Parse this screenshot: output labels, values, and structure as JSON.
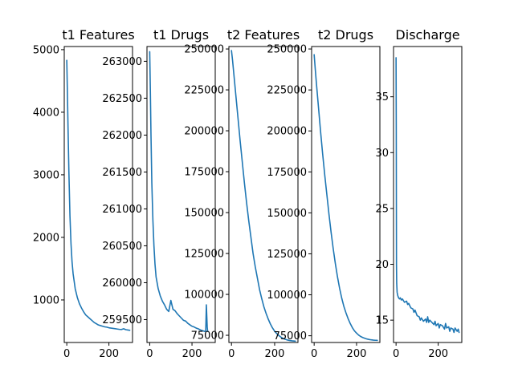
{
  "colors": {
    "series": "#1f77b4",
    "axis": "#000000",
    "background": "#ffffff"
  },
  "chart_data": [
    {
      "type": "line",
      "title": "t1 Features",
      "xlim": [
        -12,
        312
      ],
      "ylim": [
        320,
        5050
      ],
      "xticks": [
        0,
        200
      ],
      "yticks": [
        1000,
        2000,
        3000,
        4000,
        5000
      ],
      "grid": false,
      "series": [
        {
          "x": [
            0,
            3,
            6,
            10,
            15,
            20,
            25,
            30,
            40,
            50,
            60,
            70,
            80,
            90,
            100,
            110,
            120,
            130,
            140,
            150,
            160,
            170,
            180,
            190,
            200,
            210,
            220,
            230,
            240,
            250,
            260,
            270,
            280,
            290,
            299
          ],
          "y": [
            4830,
            4300,
            3750,
            3050,
            2350,
            1900,
            1610,
            1420,
            1180,
            1040,
            940,
            870,
            810,
            760,
            730,
            700,
            670,
            640,
            620,
            600,
            590,
            580,
            570,
            565,
            555,
            550,
            545,
            540,
            535,
            530,
            528,
            540,
            525,
            520,
            515
          ]
        }
      ]
    },
    {
      "type": "line",
      "title": "t1 Drugs",
      "xlim": [
        -13,
        310
      ],
      "ylim": [
        259190,
        263200
      ],
      "xticks": [
        0,
        200
      ],
      "yticks": [
        259500,
        260000,
        260500,
        261000,
        261500,
        262000,
        262500,
        263000
      ],
      "grid": false,
      "series": [
        {
          "x": [
            0,
            3,
            6,
            10,
            15,
            20,
            25,
            30,
            40,
            50,
            60,
            70,
            80,
            90,
            100,
            105,
            110,
            120,
            130,
            140,
            150,
            160,
            170,
            180,
            190,
            200,
            210,
            220,
            230,
            240,
            250,
            260,
            265,
            268,
            270,
            272,
            274
          ],
          "y": [
            263130,
            262600,
            262000,
            261350,
            260850,
            260500,
            260250,
            260080,
            259920,
            259820,
            259750,
            259700,
            259640,
            259610,
            259760,
            259700,
            259640,
            259620,
            259580,
            259550,
            259520,
            259490,
            259480,
            259450,
            259430,
            259410,
            259400,
            259385,
            259375,
            259360,
            259350,
            259340,
            259345,
            259700,
            259550,
            259400,
            259340
          ]
        }
      ]
    },
    {
      "type": "line",
      "title": "t2 Features",
      "xlim": [
        -12,
        308
      ],
      "ylim": [
        70600,
        251500
      ],
      "xticks": [
        0,
        200
      ],
      "yticks": [
        75000,
        100000,
        125000,
        150000,
        175000,
        200000,
        225000,
        250000
      ],
      "grid": false,
      "series": [
        {
          "x": [
            0,
            5,
            10,
            20,
            30,
            40,
            50,
            60,
            70,
            80,
            90,
            100,
            110,
            120,
            130,
            140,
            150,
            160,
            170,
            180,
            190,
            200,
            210,
            220,
            230,
            240,
            250,
            260,
            270,
            280,
            290,
            296
          ],
          "y": [
            249000,
            243000,
            236000,
            222000,
            208000,
            194000,
            181000,
            168000,
            156000,
            145000,
            135000,
            125000,
            117000,
            110000,
            103000,
            97500,
            92500,
            88500,
            85000,
            82000,
            79500,
            77500,
            76000,
            74800,
            73800,
            73000,
            72500,
            72100,
            71800,
            71600,
            71500,
            71450
          ]
        }
      ]
    },
    {
      "type": "line",
      "title": "t2 Drugs",
      "xlim": [
        -12,
        310
      ],
      "ylim": [
        70900,
        251500
      ],
      "xticks": [
        0,
        200
      ],
      "yticks": [
        75000,
        100000,
        125000,
        150000,
        175000,
        200000,
        225000,
        250000
      ],
      "grid": false,
      "series": [
        {
          "x": [
            0,
            5,
            10,
            20,
            30,
            40,
            50,
            60,
            70,
            80,
            90,
            100,
            110,
            120,
            130,
            140,
            150,
            160,
            170,
            180,
            190,
            200,
            210,
            220,
            230,
            240,
            250,
            260,
            270,
            280,
            290,
            298
          ],
          "y": [
            246500,
            238000,
            230000,
            215000,
            200000,
            186000,
            173000,
            161000,
            149000,
            138000,
            128000,
            119000,
            111000,
            104000,
            98000,
            93000,
            89000,
            85500,
            82500,
            80000,
            78000,
            76600,
            75400,
            74500,
            73900,
            73400,
            73000,
            72700,
            72500,
            72350,
            72250,
            72200
          ]
        }
      ]
    },
    {
      "type": "line",
      "title": "Discharge",
      "xlim": [
        -12,
        312
      ],
      "ylim": [
        13.0,
        39.5
      ],
      "xticks": [
        0,
        200
      ],
      "yticks": [
        15,
        20,
        25,
        30,
        35
      ],
      "grid": false,
      "series": [
        {
          "x": [
            0,
            1,
            2,
            3,
            5,
            8,
            12,
            16,
            20,
            25,
            30,
            40,
            50,
            55,
            60,
            70,
            80,
            85,
            90,
            100,
            110,
            115,
            120,
            130,
            140,
            145,
            150,
            155,
            160,
            170,
            180,
            185,
            190,
            200,
            205,
            210,
            220,
            230,
            235,
            240,
            250,
            255,
            260,
            270,
            275,
            280,
            290,
            295,
            299
          ],
          "y": [
            38.5,
            32.0,
            20.0,
            18.3,
            17.5,
            17.2,
            17.0,
            16.9,
            17.0,
            16.8,
            16.9,
            16.6,
            16.7,
            16.4,
            16.5,
            16.1,
            16.0,
            15.7,
            15.9,
            15.4,
            15.3,
            15.0,
            15.2,
            14.9,
            15.1,
            14.8,
            15.3,
            14.8,
            15.0,
            14.8,
            14.6,
            14.9,
            14.5,
            14.7,
            14.3,
            14.6,
            14.5,
            14.2,
            14.7,
            14.3,
            14.4,
            14.0,
            14.3,
            14.2,
            13.9,
            14.3,
            14.0,
            14.2,
            13.9
          ]
        }
      ]
    }
  ]
}
